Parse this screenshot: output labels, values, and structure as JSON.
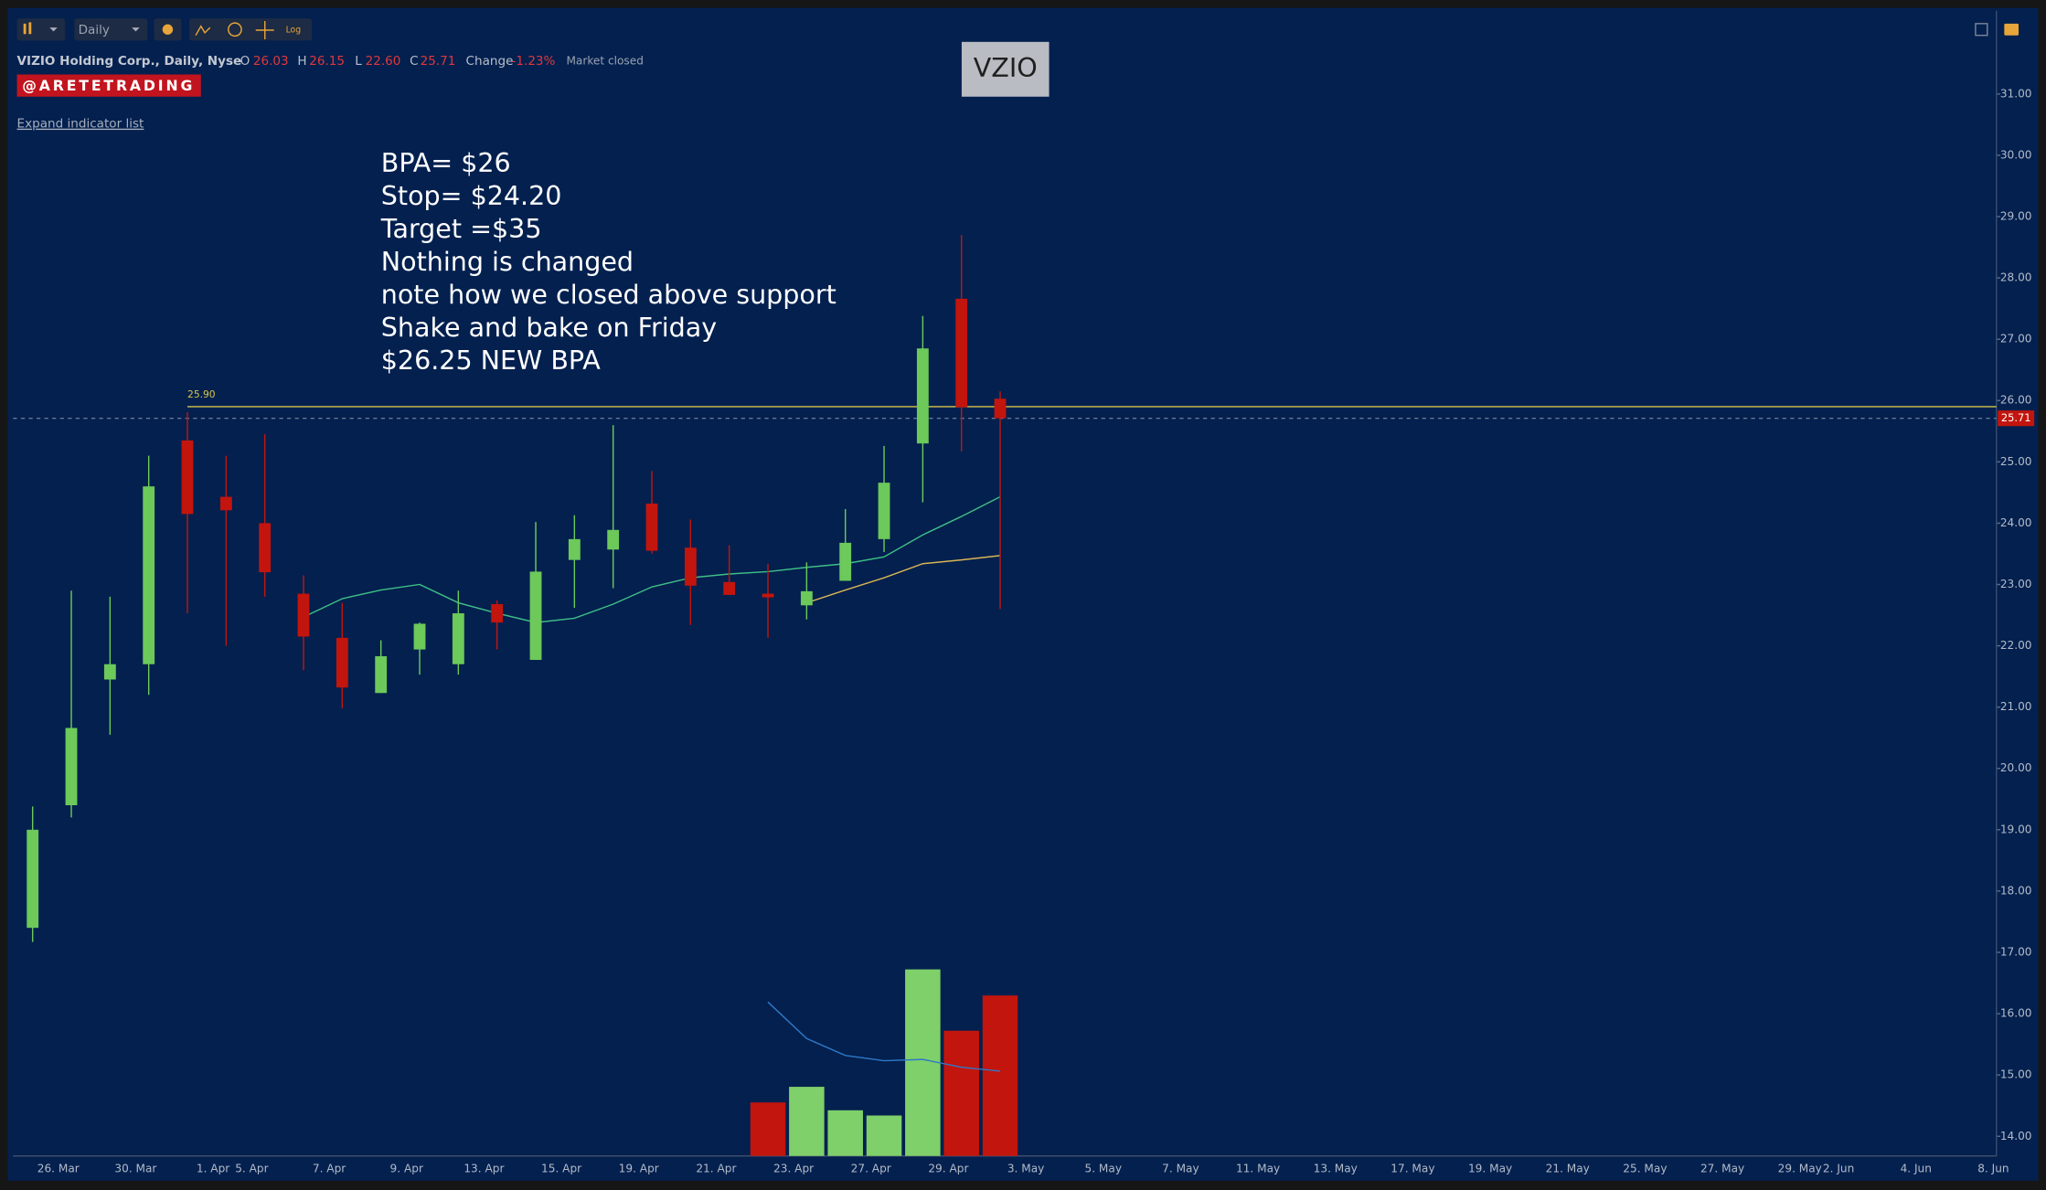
{
  "toolbar": {
    "interval": "Daily",
    "log": "Log"
  },
  "header": {
    "instrument": "VIZIO Holding Corp., Daily, Nyse",
    "quote": [
      {
        "key": "O",
        "value": "26.03"
      },
      {
        "key": "H",
        "value": "26.15"
      },
      {
        "key": "L",
        "value": "22.60"
      },
      {
        "key": "C",
        "value": "25.71"
      }
    ],
    "change_label": "Change",
    "change": "-1.23%",
    "status": "Market closed",
    "badge": "@ARETETRADING",
    "expand": "Expand indicator list"
  },
  "chart_data": {
    "type": "candlestick",
    "title": "VZIO",
    "annotations": [
      "BPA= $26",
      "Stop= $24.20",
      "Target =$35",
      "Nothing is changed",
      "note how we closed above support",
      "Shake and bake on Friday",
      "$26.25 NEW BPA"
    ],
    "categories": [
      null,
      "26. Mar",
      null,
      "30. Mar",
      null,
      "1. Apr",
      "5. Apr",
      null,
      "7. Apr",
      null,
      "9. Apr",
      null,
      "13. Apr",
      null,
      "15. Apr",
      null,
      "19. Apr",
      null,
      "21. Apr",
      null,
      "23. Apr",
      null,
      "27. Apr",
      null,
      "29. Apr",
      null,
      "3. May",
      null,
      "5. May",
      null,
      "7. May",
      null,
      "11. May",
      null,
      "13. May",
      null,
      "17. May",
      null,
      "19. May",
      null,
      "21. May",
      null,
      "25. May",
      null,
      "27. May",
      null,
      "29. May",
      "2. Jun",
      null,
      "4. Jun",
      null,
      "8. Jun"
    ],
    "open": [
      17.4,
      19.4,
      21.45,
      21.7,
      25.35,
      24.43,
      24.0,
      22.85,
      22.13,
      21.23,
      21.94,
      21.7,
      22.68,
      21.77,
      23.4,
      23.57,
      24.32,
      23.6,
      23.04,
      22.85,
      22.66,
      23.06,
      23.74,
      25.3,
      27.66,
      26.03,
      null,
      null,
      null,
      null,
      null,
      null,
      null,
      null,
      null,
      null,
      null,
      null,
      null,
      null,
      null,
      null,
      null,
      null,
      null,
      null,
      null,
      null,
      null,
      null,
      null,
      null
    ],
    "high": [
      19.38,
      22.9,
      22.8,
      25.1,
      25.81,
      25.1,
      25.45,
      23.15,
      22.7,
      22.09,
      22.38,
      22.9,
      22.74,
      24.02,
      24.13,
      25.6,
      24.85,
      24.06,
      23.64,
      23.34,
      23.36,
      24.23,
      25.26,
      27.38,
      28.7,
      26.15,
      null,
      null,
      null,
      null,
      null,
      null,
      null,
      null,
      null,
      null,
      null,
      null,
      null,
      null,
      null,
      null,
      null,
      null,
      null,
      null,
      null,
      null,
      null,
      null,
      null,
      null
    ],
    "low": [
      17.17,
      19.2,
      20.55,
      21.2,
      22.53,
      22.0,
      22.8,
      21.6,
      20.98,
      21.23,
      21.53,
      21.53,
      21.94,
      21.77,
      22.62,
      22.94,
      23.5,
      22.34,
      22.83,
      22.13,
      22.43,
      23.06,
      23.53,
      24.34,
      25.17,
      22.6,
      null,
      null,
      null,
      null,
      null,
      null,
      null,
      null,
      null,
      null,
      null,
      null,
      null,
      null,
      null,
      null,
      null,
      null,
      null,
      null,
      null,
      null,
      null,
      null,
      null,
      null
    ],
    "close": [
      19.0,
      20.66,
      21.7,
      24.6,
      24.15,
      24.21,
      23.2,
      22.15,
      21.32,
      21.83,
      22.36,
      22.53,
      22.38,
      23.21,
      23.74,
      23.89,
      23.55,
      22.98,
      22.83,
      22.79,
      22.89,
      23.68,
      24.66,
      26.85,
      25.89,
      25.71,
      null,
      null,
      null,
      null,
      null,
      null,
      null,
      null,
      null,
      null,
      null,
      null,
      null,
      null,
      null,
      null,
      null,
      null,
      null,
      null,
      null,
      null,
      null,
      null,
      null,
      null
    ],
    "up_color": "#6cc95a",
    "down_color": "#c2150d",
    "moving_averages": [
      {
        "color": "#3fbf86",
        "values": [
          null,
          null,
          null,
          null,
          null,
          null,
          null,
          22.47,
          22.77,
          22.91,
          23.0,
          22.7,
          22.53,
          22.38,
          22.45,
          22.68,
          22.96,
          23.11,
          23.17,
          23.21,
          23.28,
          23.34,
          23.45,
          23.81,
          24.11,
          24.43,
          null,
          null,
          null,
          null,
          null,
          null,
          null,
          null,
          null,
          null,
          null,
          null,
          null,
          null,
          null,
          null,
          null,
          null,
          null,
          null,
          null,
          null,
          null,
          null,
          null,
          null
        ]
      },
      {
        "color": "#d9b553",
        "values": [
          null,
          null,
          null,
          null,
          null,
          null,
          null,
          null,
          null,
          null,
          null,
          null,
          null,
          null,
          null,
          null,
          null,
          null,
          null,
          null,
          22.7,
          22.91,
          23.11,
          23.34,
          23.4,
          23.47,
          null,
          null,
          null,
          null,
          null,
          null,
          null,
          null,
          null,
          null,
          null,
          null,
          null,
          null,
          null,
          null,
          null,
          null,
          null,
          null,
          null,
          null,
          null,
          null,
          null,
          null
        ]
      }
    ],
    "volume": [
      null,
      null,
      null,
      null,
      null,
      null,
      null,
      null,
      null,
      null,
      null,
      null,
      null,
      null,
      null,
      null,
      null,
      null,
      null,
      41,
      53,
      35,
      31,
      143,
      96,
      123,
      null,
      null,
      null,
      null,
      null,
      null,
      null,
      null,
      null,
      null,
      null,
      null,
      null,
      null,
      null,
      null,
      null,
      null,
      null,
      null,
      null,
      null,
      null,
      null,
      null,
      null
    ],
    "volume_average": [
      null,
      null,
      null,
      null,
      null,
      null,
      null,
      null,
      null,
      null,
      null,
      null,
      null,
      null,
      null,
      null,
      null,
      null,
      null,
      118,
      90,
      77,
      73,
      74,
      68,
      65,
      null,
      null,
      null,
      null,
      null,
      null,
      null,
      null,
      null,
      null,
      null,
      null,
      null,
      null,
      null,
      null,
      null,
      null,
      null,
      null,
      null,
      null,
      null,
      null,
      null,
      null
    ],
    "volume_average_color": "#2f78c8",
    "volume_ylim": [
      0,
      150
    ],
    "ylim": [
      13.68,
      32.36
    ],
    "yticks": [
      {
        "value": 14,
        "label": "14.00"
      },
      {
        "value": 15,
        "label": "15.00"
      },
      {
        "value": 16,
        "label": "16.00"
      },
      {
        "value": 17,
        "label": "17.00"
      },
      {
        "value": 18,
        "label": "18.00"
      },
      {
        "value": 19,
        "label": "19.00"
      },
      {
        "value": 20,
        "label": "20.00"
      },
      {
        "value": 21,
        "label": "21.00"
      },
      {
        "value": 22,
        "label": "22.00"
      },
      {
        "value": 23,
        "label": "23.00"
      },
      {
        "value": 24,
        "label": "24.00"
      },
      {
        "value": 25,
        "label": "25.00"
      },
      {
        "value": 26,
        "label": "26.00"
      },
      {
        "value": 27,
        "label": "27.00"
      },
      {
        "value": 28,
        "label": "28.00"
      },
      {
        "value": 29,
        "label": "29.00"
      },
      {
        "value": 30,
        "label": "30.00"
      },
      {
        "value": 31,
        "label": "31.00"
      }
    ],
    "reference_line": {
      "value": 25.9,
      "label": "25.90",
      "color": "#d8c64a"
    },
    "last_price": {
      "value": 25.71,
      "label": "25.71",
      "color": "#c2150d"
    }
  }
}
